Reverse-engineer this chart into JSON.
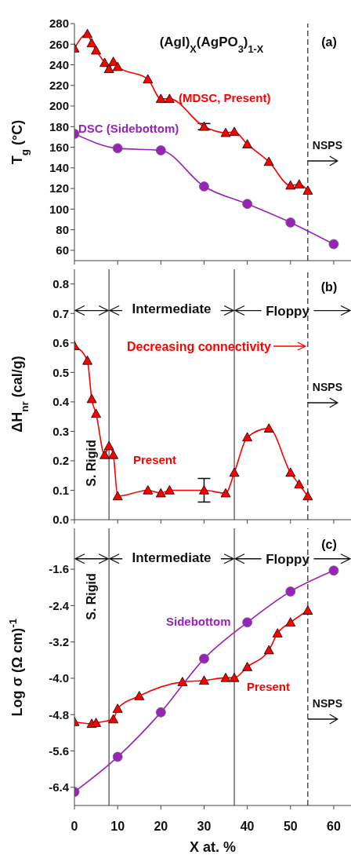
{
  "chart_data": [
    {
      "type": "line",
      "title": "(AgI)$_{X}$(AgPO$_{3}$)$_{1-X}$",
      "ylabel": "T$_{g}$ (°C)",
      "xlim": [
        0,
        64
      ],
      "xticks": [
        0,
        10,
        20,
        30,
        40,
        50,
        60
      ],
      "ylim": [
        50,
        280
      ],
      "yticks": [
        60,
        80,
        100,
        120,
        140,
        160,
        180,
        200,
        220,
        240,
        260,
        280
      ],
      "tick_labels": "y",
      "line_style": "solid",
      "annotations": [
        "(a)"
      ],
      "ref_lines": [
        {
          "axis": "x",
          "value": 54,
          "label": "NSPS",
          "line_style": "dashed",
          "color": "#333333"
        }
      ],
      "series": [
        {
          "name": "(MDSC, Present)",
          "color": "#ff0000",
          "marker": "triangle",
          "x": [
            0,
            3,
            4,
            5,
            7,
            8,
            9,
            10,
            17,
            20,
            22,
            30,
            35,
            37,
            40,
            45,
            50,
            52,
            54
          ],
          "values": [
            256,
            270,
            261,
            254,
            242,
            236,
            243,
            238,
            226,
            207,
            207,
            180,
            174,
            175,
            163,
            146,
            123,
            124,
            118
          ],
          "errors": [
            null,
            null,
            null,
            null,
            null,
            null,
            null,
            null,
            null,
            null,
            null,
            3,
            null,
            null,
            null,
            null,
            null,
            null,
            null
          ]
        },
        {
          "name": "DSC (Sidebottom)",
          "color": "#9922bb",
          "marker": "circle",
          "x": [
            0,
            10,
            20,
            30,
            40,
            50,
            60
          ],
          "values": [
            173,
            159,
            157,
            122,
            105,
            87,
            66
          ]
        }
      ]
    },
    {
      "type": "line",
      "ylabel": "ΔH$_{nr}$ (cal/g)",
      "xlim": [
        0,
        64
      ],
      "xticks": [
        0,
        10,
        20,
        30,
        40,
        50,
        60
      ],
      "ylim": [
        0,
        0.85
      ],
      "yticks": [
        {
          "value": 0,
          "label": "0.0"
        },
        0.1,
        0.2,
        0.3,
        0.4,
        0.5,
        0.6,
        0.7,
        0.8
      ],
      "tick_labels": "y",
      "line_style": "solid",
      "annotations": [
        "(b)",
        "Decreasing connectivity",
        "S. Rigid",
        "Intermediate",
        {
          "text": "Floppy",
          "x": 37,
          "y": 0.71
        }
      ],
      "ref_lines": [
        {
          "axis": "x",
          "value": 8,
          "color": "#555555"
        },
        {
          "axis": "x",
          "value": 37,
          "color": "#555555"
        },
        {
          "axis": "x",
          "value": 54,
          "label": "NSPS",
          "line_style": "dashed",
          "color": "#333333"
        }
      ],
      "series": [
        {
          "name": "Present",
          "color": "#ff0000",
          "marker": "triangle",
          "x": [
            0,
            3,
            4,
            5,
            7,
            8,
            9,
            10,
            17,
            20,
            22,
            30,
            35,
            37,
            40,
            45,
            50,
            52,
            54
          ],
          "values": [
            0.59,
            0.54,
            0.41,
            0.36,
            0.22,
            0.25,
            0.22,
            0.08,
            0.1,
            0.09,
            0.1,
            0.1,
            0.09,
            0.16,
            0.28,
            0.31,
            0.16,
            0.12,
            0.08
          ],
          "errors": [
            null,
            null,
            null,
            null,
            null,
            null,
            null,
            null,
            null,
            null,
            null,
            0.04,
            null,
            null,
            null,
            null,
            null,
            null,
            null
          ]
        }
      ]
    },
    {
      "type": "line",
      "ylabel": "Log σ (Ω cm)$^{-1}$",
      "xlabel": "X at. %",
      "xlim": [
        0,
        64
      ],
      "xticks": [
        0,
        10,
        20,
        30,
        40,
        50,
        60
      ],
      "ylim": [
        -6.8,
        -0.7
      ],
      "yticks": [
        -6.4,
        -5.6,
        -4.8,
        {
          "value": -4,
          "label": "-4.0"
        },
        -3.2,
        -2.4,
        -1.6
      ],
      "line_style": "solid",
      "annotations": [
        "(c)",
        "S. Rigid",
        "Intermediate",
        {
          "text": "Floppy",
          "x": 37,
          "y": -1.37
        }
      ],
      "ref_lines": [
        {
          "axis": "x",
          "value": 8,
          "color": "#555555"
        },
        {
          "axis": "x",
          "value": 37,
          "color": "#555555"
        },
        {
          "axis": "x",
          "value": 54,
          "label": "NSPS",
          "line_style": "dashed",
          "color": "#333333"
        }
      ],
      "series": [
        {
          "name": "Present",
          "color": "#ff0000",
          "marker": "triangle",
          "x": [
            0,
            4,
            5,
            9,
            10,
            15,
            25,
            30,
            35,
            37,
            40,
            45,
            47,
            50,
            54
          ],
          "values": [
            -4.96,
            -5.0,
            -4.98,
            -4.9,
            -4.67,
            -4.39,
            -4.08,
            -4.05,
            -3.99,
            -3.99,
            -3.75,
            -3.38,
            -3.01,
            -2.77,
            -2.51
          ]
        },
        {
          "name": "Sidebottom",
          "color": "#9922bb",
          "marker": "circle",
          "x": [
            0,
            10,
            20,
            30,
            40,
            50,
            60
          ],
          "values": [
            -6.5,
            -5.73,
            -4.75,
            -3.57,
            -2.77,
            -2.09,
            -1.63
          ]
        }
      ]
    }
  ]
}
